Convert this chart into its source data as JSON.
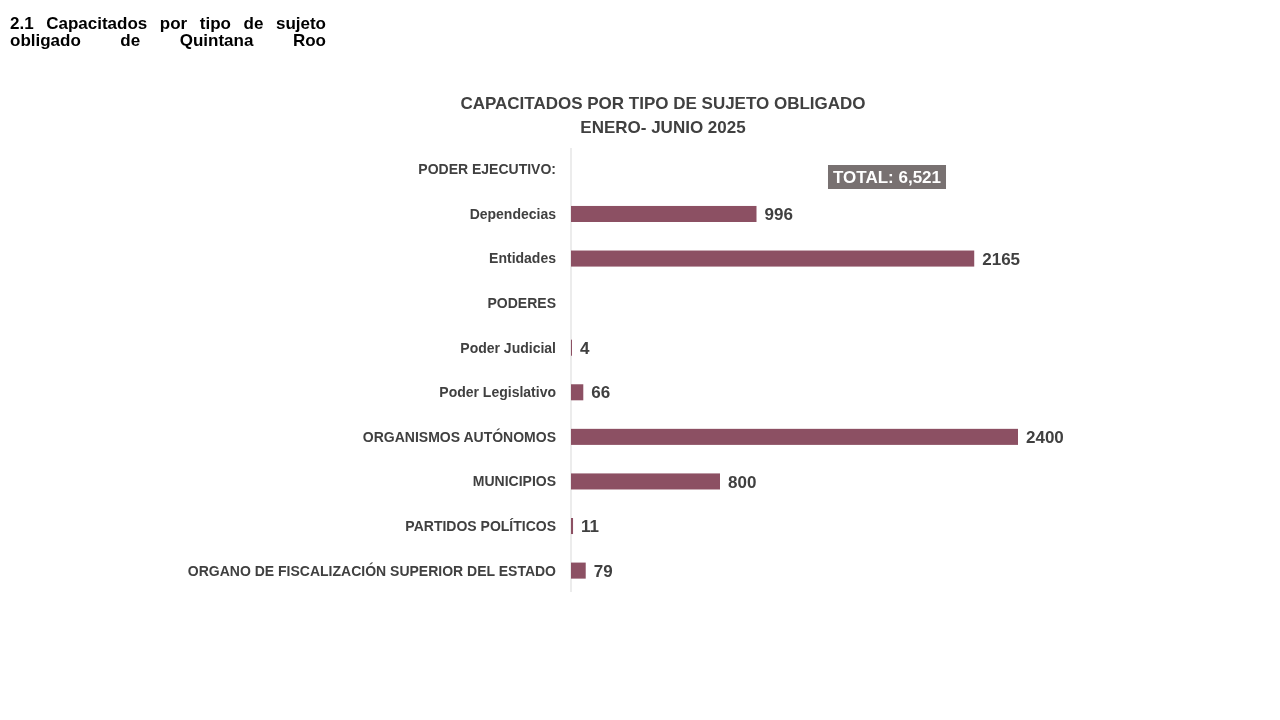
{
  "chart_data": {
    "type": "bar",
    "orientation": "horizontal",
    "title": "CAPACITADOS POR TIPO DE SUJETO OBLIGADO",
    "subtitle": "ENERO- JUNIO 2025",
    "categories": [
      null,
      "Dependecias",
      "Entidades",
      null,
      "Poder Judicial",
      "Poder Legislativo",
      "ORGANISMOS AUTÓNOMOS",
      "MUNICIPIOS",
      "PARTIDOS POLÍTICOS",
      "ORGANO DE FISCALIZACIÓN SUPERIOR DEL ESTADO"
    ],
    "values": [
      null,
      996,
      2165,
      null,
      4,
      66,
      2400,
      800,
      11,
      79
    ],
    "color": "#8c5063",
    "data_labels": true,
    "annotations": [
      "2.1 Capacitados por tipo de sujeto obligado de Quintana Roo",
      "TOTAL: 6,521",
      "PODER EJECUTIVO:",
      "PODERES"
    ]
  }
}
